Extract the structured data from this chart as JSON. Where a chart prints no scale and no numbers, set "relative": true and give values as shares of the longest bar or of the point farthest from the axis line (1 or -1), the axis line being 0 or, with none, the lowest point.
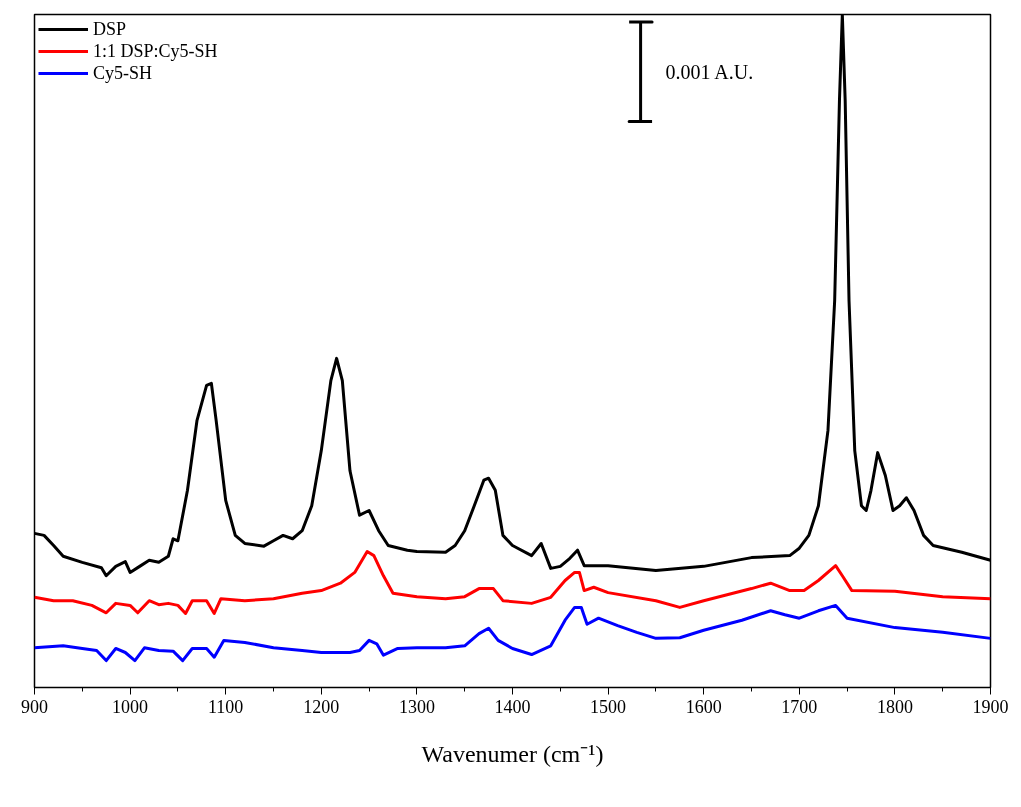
{
  "chart_data": {
    "type": "line",
    "relative": true,
    "xlabel": "Wavenumer (cm⁻¹)",
    "xlim": [
      900,
      1900
    ],
    "xticks": [
      900,
      1000,
      1100,
      1200,
      1300,
      1400,
      1500,
      1600,
      1700,
      1800,
      1900
    ],
    "tick_labels": "x",
    "grid": false,
    "legend": "top left",
    "marker": "none",
    "line_style": "solid",
    "annotations": [
      "0.001 A.U."
    ],
    "series": [
      {
        "name": "DSP",
        "color": "#000000",
        "x": [
          900,
          910,
          920,
          930,
          950,
          970,
          975,
          985,
          995,
          1000,
          1010,
          1020,
          1030,
          1040,
          1045,
          1050,
          1060,
          1070,
          1080,
          1085,
          1090,
          1100,
          1110,
          1120,
          1140,
          1150,
          1160,
          1170,
          1180,
          1190,
          1200,
          1210,
          1216,
          1222,
          1230,
          1240,
          1250,
          1260,
          1270,
          1290,
          1300,
          1330,
          1340,
          1350,
          1360,
          1370,
          1375,
          1382,
          1390,
          1400,
          1420,
          1430,
          1440,
          1450,
          1460,
          1468,
          1475,
          1500,
          1550,
          1600,
          1650,
          1690,
          1700,
          1710,
          1720,
          1730,
          1737,
          1742,
          1745,
          1748,
          1752,
          1758,
          1765,
          1770,
          1775,
          1782,
          1790,
          1798,
          1805,
          1812,
          1820,
          1830,
          1840,
          1870,
          1900
        ],
        "values": [
          0.229,
          0.226,
          0.211,
          0.195,
          0.186,
          0.178,
          0.166,
          0.18,
          0.187,
          0.171,
          0.18,
          0.189,
          0.186,
          0.195,
          0.221,
          0.218,
          0.293,
          0.397,
          0.449,
          0.452,
          0.397,
          0.278,
          0.226,
          0.214,
          0.21,
          0.218,
          0.226,
          0.221,
          0.233,
          0.27,
          0.352,
          0.456,
          0.489,
          0.456,
          0.322,
          0.256,
          0.263,
          0.233,
          0.211,
          0.204,
          0.202,
          0.201,
          0.211,
          0.233,
          0.27,
          0.308,
          0.311,
          0.293,
          0.226,
          0.211,
          0.196,
          0.214,
          0.177,
          0.18,
          0.192,
          0.204,
          0.181,
          0.181,
          0.174,
          0.18,
          0.193,
          0.196,
          0.207,
          0.226,
          0.27,
          0.382,
          0.575,
          0.872,
          1,
          0.872,
          0.575,
          0.352,
          0.27,
          0.263,
          0.293,
          0.349,
          0.315,
          0.263,
          0.27,
          0.282,
          0.263,
          0.226,
          0.211,
          0.201,
          0.189
        ]
      },
      {
        "color": "#000000",
        "x": [
          1522,
          1546,
          1534,
          1534,
          1522,
          1546
        ],
        "values": [
          0.989,
          0.989,
          0.989,
          0.841,
          0.841,
          0.841
        ]
      },
      {
        "name": "1:1 DSP:Cy5-SH",
        "color": "#ff0000",
        "x": [
          900,
          920,
          940,
          960,
          975,
          985,
          1000,
          1008,
          1020,
          1030,
          1040,
          1050,
          1058,
          1065,
          1080,
          1088,
          1095,
          1120,
          1150,
          1180,
          1200,
          1220,
          1235,
          1248,
          1255,
          1265,
          1275,
          1300,
          1330,
          1350,
          1365,
          1380,
          1390,
          1420,
          1440,
          1455,
          1465,
          1470,
          1475,
          1485,
          1500,
          1550,
          1575,
          1600,
          1650,
          1670,
          1690,
          1705,
          1720,
          1738,
          1745,
          1755,
          1800,
          1850,
          1900
        ],
        "values": [
          0.134,
          0.129,
          0.129,
          0.122,
          0.111,
          0.125,
          0.122,
          0.111,
          0.129,
          0.123,
          0.125,
          0.122,
          0.11,
          0.129,
          0.129,
          0.11,
          0.132,
          0.129,
          0.132,
          0.14,
          0.144,
          0.155,
          0.171,
          0.202,
          0.196,
          0.166,
          0.14,
          0.135,
          0.132,
          0.135,
          0.147,
          0.147,
          0.129,
          0.125,
          0.134,
          0.159,
          0.171,
          0.171,
          0.144,
          0.149,
          0.141,
          0.129,
          0.119,
          0.129,
          0.147,
          0.155,
          0.144,
          0.144,
          0.159,
          0.181,
          0.166,
          0.144,
          0.143,
          0.135,
          0.132
        ]
      },
      {
        "name": "Cy5-SH",
        "color": "#0000ff",
        "x": [
          900,
          930,
          950,
          965,
          975,
          985,
          995,
          1005,
          1015,
          1030,
          1045,
          1055,
          1065,
          1080,
          1088,
          1098,
          1120,
          1150,
          1180,
          1200,
          1230,
          1240,
          1250,
          1258,
          1265,
          1280,
          1300,
          1330,
          1350,
          1365,
          1375,
          1385,
          1400,
          1420,
          1440,
          1455,
          1465,
          1472,
          1478,
          1490,
          1510,
          1530,
          1550,
          1575,
          1600,
          1640,
          1670,
          1685,
          1700,
          1720,
          1738,
          1750,
          1800,
          1850,
          1900
        ],
        "values": [
          0.059,
          0.062,
          0.058,
          0.055,
          0.04,
          0.058,
          0.052,
          0.04,
          0.059,
          0.055,
          0.054,
          0.04,
          0.058,
          0.058,
          0.045,
          0.07,
          0.067,
          0.059,
          0.055,
          0.052,
          0.052,
          0.055,
          0.07,
          0.065,
          0.048,
          0.058,
          0.059,
          0.059,
          0.062,
          0.08,
          0.088,
          0.07,
          0.058,
          0.049,
          0.062,
          0.1,
          0.119,
          0.119,
          0.094,
          0.103,
          0.092,
          0.082,
          0.073,
          0.074,
          0.085,
          0.1,
          0.114,
          0.108,
          0.103,
          0.114,
          0.122,
          0.103,
          0.089,
          0.082,
          0.073
        ]
      }
    ]
  }
}
